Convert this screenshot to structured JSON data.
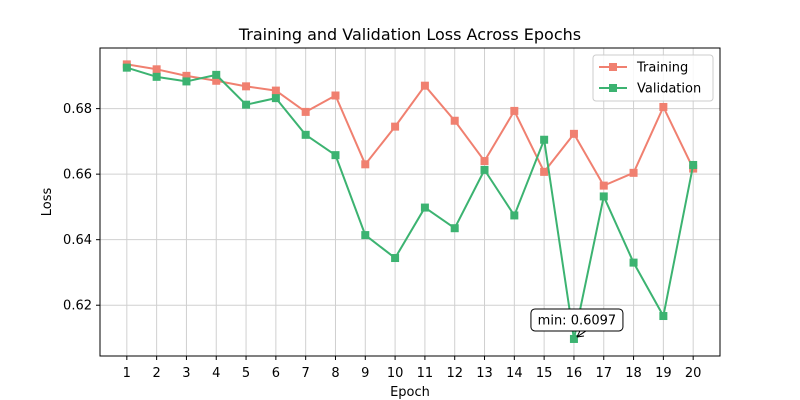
{
  "chart_data": {
    "type": "line",
    "title": "Training and Validation Loss Across Epochs",
    "xlabel": "Epoch",
    "ylabel": "Loss",
    "x": [
      1,
      2,
      3,
      4,
      5,
      6,
      7,
      8,
      9,
      10,
      11,
      12,
      13,
      14,
      15,
      16,
      17,
      18,
      19,
      20
    ],
    "xlim": [
      0.1,
      20.9
    ],
    "ylim": [
      0.6045,
      0.6985
    ],
    "yticks": [
      "0.62",
      "0.64",
      "0.66",
      "0.68"
    ],
    "ytick_values": [
      0.62,
      0.64,
      0.66,
      0.68
    ],
    "grid": true,
    "legend_placement": "top-right",
    "series": [
      {
        "name": "Training",
        "color": "#f08070",
        "marker": "square",
        "values": [
          0.6935,
          0.692,
          0.69,
          0.6885,
          0.6868,
          0.6855,
          0.679,
          0.684,
          0.663,
          0.6745,
          0.687,
          0.6763,
          0.664,
          0.6793,
          0.6607,
          0.6723,
          0.6565,
          0.6604,
          0.6805,
          0.6617
        ]
      },
      {
        "name": "Validation",
        "color": "#3cb371",
        "marker": "square",
        "values": [
          0.6925,
          0.6897,
          0.6883,
          0.6903,
          0.6812,
          0.6832,
          0.672,
          0.6658,
          0.6414,
          0.6344,
          0.6498,
          0.6435,
          0.6613,
          0.6474,
          0.6705,
          0.6097,
          0.6532,
          0.633,
          0.6167,
          0.6628
        ]
      }
    ],
    "annotation": {
      "text": "min: 0.6097",
      "x": 16,
      "y": 0.6097
    }
  }
}
